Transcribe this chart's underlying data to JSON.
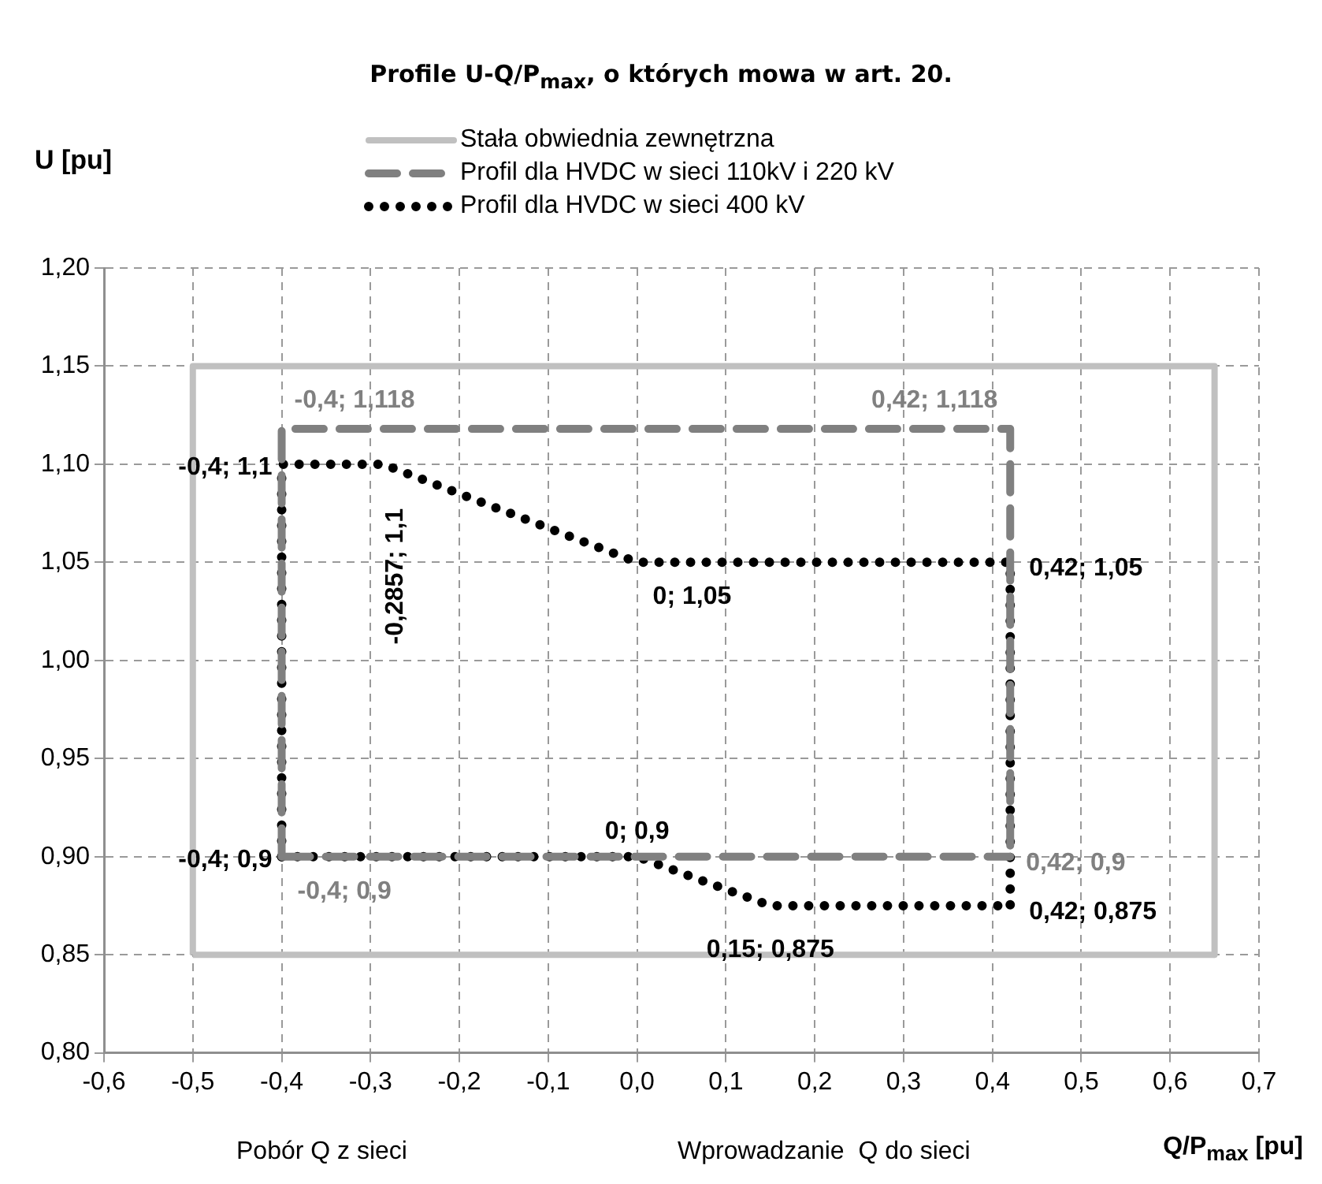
{
  "chart_data": {
    "type": "line",
    "title": "Profile U-Q/P$_{max}$, o których mowa w art. 20.",
    "xlabel": "Q/P$_{max}$ [pu]",
    "ylabel": "U [pu]",
    "annotations": [
      "Pobór Q z sieci",
      "Wprowadzanie  Q do sieci"
    ],
    "series": [
      {
        "name": "Stała obwiednia zewnętrzna",
        "color": "#c0c0c0",
        "line_style": "solid",
        "marker": "none",
        "x": [
          -0.5,
          -0.5,
          0.65,
          0.65
        ],
        "values": [
          0.85,
          1.15,
          1.15,
          0.85
        ]
      },
      {
        "color": "#c0c0c0",
        "line_style": "solid",
        "marker": "none",
        "x": [
          -0.5,
          0.65
        ],
        "values": [
          0.85,
          0.85
        ]
      },
      {
        "name": "Profil dla HVDC w sieci 110kV i 220 kV",
        "color": "#808080",
        "line_style": "dashed",
        "marker": "none",
        "x": [
          -0.4,
          -0.4,
          0.42,
          0.42
        ],
        "values": [
          0.9,
          1.118,
          1.118,
          0.9
        ],
        "value_labels": [
          "-0,4; 0,9",
          "-0,4; 1,118",
          "0,42; 1,118",
          "0,42; 0,9"
        ]
      },
      {
        "color": "#808080",
        "line_style": "dashed",
        "marker": "none",
        "x": [
          -0.4,
          0.42
        ],
        "values": [
          0.9,
          0.9
        ]
      },
      {
        "name": "Profil dla HVDC w sieci 400 kV",
        "color": "#000000",
        "line_style": "dotted",
        "marker": "none",
        "x": [
          -0.4,
          -0.4,
          -0.2857,
          0,
          0.42,
          0.42
        ],
        "values": [
          0.9,
          1.1,
          1.1,
          1.05,
          1.05,
          0.875
        ],
        "value_labels": [
          "-0,4; 0,9",
          "-0,4; 1,1",
          "-0,2857; 1,1",
          "0; 1,05",
          "0,42; 1,05",
          "0,42; 0,875"
        ]
      },
      {
        "color": "#000000",
        "line_style": "dotted",
        "marker": "none",
        "x": [
          -0.4,
          0,
          0.15,
          0.42
        ],
        "values": [
          0.9,
          0.9,
          0.875,
          0.875
        ],
        "value_labels": [
          null,
          "0; 0,9",
          "0,15; 0,875",
          null
        ]
      }
    ],
    "xlim": [
      -0.6,
      0.7
    ],
    "xticks": [
      {
        "value": -0.6,
        "label": "-0,6"
      },
      {
        "value": -0.5,
        "label": "-0,5"
      },
      {
        "value": -0.4,
        "label": "-0,4"
      },
      {
        "value": -0.3,
        "label": "-0,3"
      },
      {
        "value": -0.2,
        "label": "-0,2"
      },
      {
        "value": -0.1,
        "label": "-0,1"
      },
      {
        "value": 0,
        "label": "0,0"
      },
      {
        "value": 0.1,
        "label": "0,1"
      },
      {
        "value": 0.2,
        "label": "0,2"
      },
      {
        "value": 0.3,
        "label": "0,3"
      },
      {
        "value": 0.4,
        "label": "0,4"
      },
      {
        "value": 0.5,
        "label": "0,5"
      },
      {
        "value": 0.6,
        "label": "0,6"
      },
      {
        "value": 0.7,
        "label": "0,7"
      }
    ],
    "ylim": [
      0.8,
      1.2
    ],
    "yticks": [
      {
        "value": 0.8,
        "label": "0,80"
      },
      {
        "value": 0.85,
        "label": "0,85"
      },
      {
        "value": 0.9,
        "label": "0,90"
      },
      {
        "value": 0.95,
        "label": "0,95"
      },
      {
        "value": 1.0,
        "label": "1,00"
      },
      {
        "value": 1.05,
        "label": "1,05"
      },
      {
        "value": 1.1,
        "label": "1,10"
      },
      {
        "value": 1.15,
        "label": "1,15"
      },
      {
        "value": 1.2,
        "label": "1,20"
      }
    ],
    "grid": true,
    "legend": "top"
  }
}
